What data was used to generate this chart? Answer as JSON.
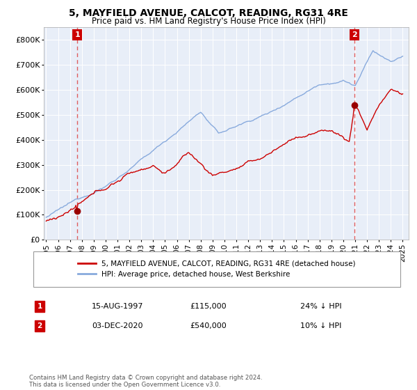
{
  "title": "5, MAYFIELD AVENUE, CALCOT, READING, RG31 4RE",
  "subtitle": "Price paid vs. HM Land Registry's House Price Index (HPI)",
  "ylim": [
    0,
    850000
  ],
  "yticks": [
    0,
    100000,
    200000,
    300000,
    400000,
    500000,
    600000,
    700000,
    800000
  ],
  "ytick_labels": [
    "£0",
    "£100K",
    "£200K",
    "£300K",
    "£400K",
    "£500K",
    "£600K",
    "£700K",
    "£800K"
  ],
  "house_color": "#cc0000",
  "hpi_color": "#88aadd",
  "vline_color": "#dd4444",
  "dot_color": "#990000",
  "annotation_box_color": "#cc0000",
  "bg_color": "#e8eef8",
  "grid_color": "#ffffff",
  "legend_label_house": "5, MAYFIELD AVENUE, CALCOT, READING, RG31 4RE (detached house)",
  "legend_label_hpi": "HPI: Average price, detached house, West Berkshire",
  "point1_label": "1",
  "point1_date": "15-AUG-1997",
  "point1_price": "£115,000",
  "point1_pct": "24% ↓ HPI",
  "point2_label": "2",
  "point2_date": "03-DEC-2020",
  "point2_price": "£540,000",
  "point2_pct": "10% ↓ HPI",
  "footnote": "Contains HM Land Registry data © Crown copyright and database right 2024.\nThis data is licensed under the Open Government Licence v3.0.",
  "point1_x": 1997.62,
  "point1_y": 115000,
  "point2_x": 2020.92,
  "point2_y": 540000,
  "xlim_left": 1994.8,
  "xlim_right": 2025.5,
  "xtick_start": 1995,
  "xtick_end": 2025
}
